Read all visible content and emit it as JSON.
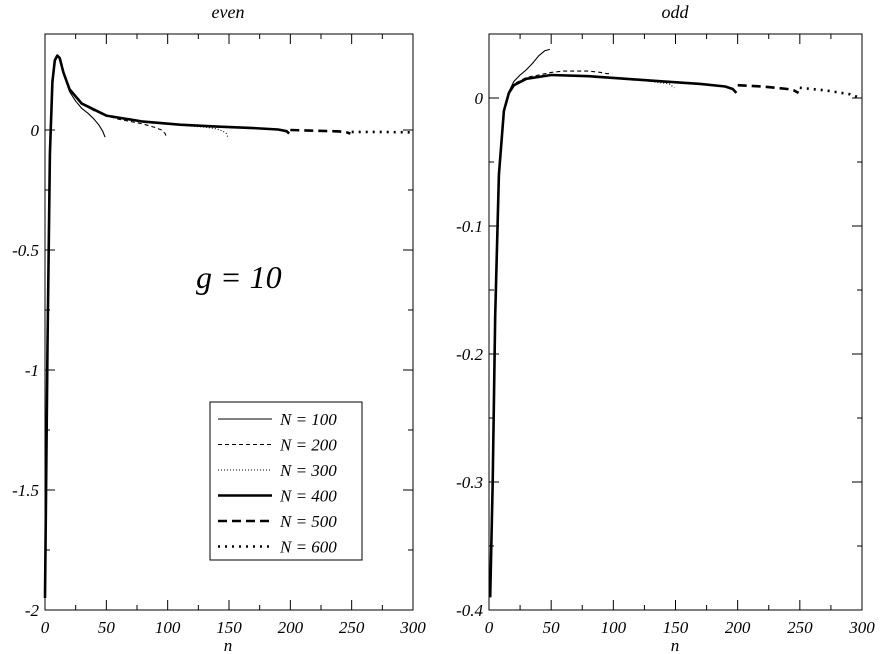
{
  "chart_data": [
    {
      "type": "line",
      "title": "even",
      "xlabel": "n",
      "ylabel": "",
      "xlim": [
        0,
        300
      ],
      "ylim": [
        -2,
        0.4
      ],
      "x_ticks": [
        0,
        50,
        100,
        150,
        200,
        250,
        300
      ],
      "y_ticks": [
        0,
        -0.5,
        -1,
        -1.5,
        -2
      ],
      "y_tick_labels": [
        "0",
        "-0.5",
        "-1",
        "-1.5",
        "-2"
      ],
      "annotation": "g = 10",
      "legend": {
        "placement": "lower-right",
        "entries": [
          "N = 100",
          "N = 200",
          "N = 300",
          "N = 400",
          "N = 500",
          "N = 600"
        ]
      },
      "series": [
        {
          "name": "N = 100",
          "style": "thin-solid",
          "x": [
            0,
            2,
            4,
            6,
            8,
            10,
            12,
            15,
            20,
            25,
            30,
            35,
            40,
            44,
            47,
            49
          ],
          "y": [
            -1.95,
            -0.9,
            -0.1,
            0.2,
            0.29,
            0.31,
            0.3,
            0.24,
            0.16,
            0.12,
            0.09,
            0.07,
            0.045,
            0.02,
            -0.005,
            -0.03
          ]
        },
        {
          "name": "N = 200",
          "style": "thin-dashed",
          "x": [
            0,
            2,
            4,
            6,
            8,
            10,
            12,
            15,
            20,
            30,
            40,
            50,
            60,
            70,
            80,
            90,
            95,
            98,
            99
          ],
          "y": [
            -1.95,
            -0.9,
            -0.1,
            0.2,
            0.29,
            0.31,
            0.3,
            0.24,
            0.17,
            0.11,
            0.08,
            0.06,
            0.045,
            0.035,
            0.025,
            0.01,
            0.0,
            -0.015,
            -0.03
          ]
        },
        {
          "name": "N = 300",
          "style": "thin-dotted",
          "x": [
            0,
            2,
            4,
            6,
            8,
            10,
            12,
            15,
            20,
            30,
            50,
            70,
            90,
            110,
            130,
            140,
            145,
            148,
            149
          ],
          "y": [
            -1.95,
            -0.9,
            -0.1,
            0.2,
            0.29,
            0.31,
            0.3,
            0.24,
            0.17,
            0.11,
            0.06,
            0.04,
            0.028,
            0.02,
            0.012,
            0.005,
            -0.005,
            -0.015,
            -0.03
          ]
        },
        {
          "name": "N = 400",
          "style": "thick-solid",
          "x": [
            0,
            2,
            4,
            6,
            8,
            10,
            12,
            15,
            20,
            30,
            50,
            80,
            110,
            140,
            170,
            190,
            197,
            199
          ],
          "y": [
            -1.95,
            -0.9,
            -0.1,
            0.2,
            0.29,
            0.31,
            0.3,
            0.24,
            0.17,
            0.11,
            0.06,
            0.035,
            0.022,
            0.014,
            0.008,
            0.002,
            -0.005,
            -0.015
          ]
        },
        {
          "name": "N = 500",
          "style": "thick-dashed",
          "x": [
            200,
            220,
            240,
            246,
            249
          ],
          "y": [
            0.0,
            -0.003,
            -0.006,
            -0.01,
            -0.015
          ]
        },
        {
          "name": "N = 600",
          "style": "thick-dotted",
          "x": [
            250,
            270,
            290,
            299
          ],
          "y": [
            -0.008,
            -0.008,
            -0.009,
            -0.01
          ]
        }
      ]
    },
    {
      "type": "line",
      "title": "odd",
      "xlabel": "n",
      "ylabel": "",
      "xlim": [
        0,
        300
      ],
      "ylim": [
        -0.4,
        0.05
      ],
      "x_ticks": [
        0,
        50,
        100,
        150,
        200,
        250,
        300
      ],
      "y_ticks": [
        0,
        -0.1,
        -0.2,
        -0.3,
        -0.4
      ],
      "y_tick_labels": [
        "0",
        "-0.1",
        "-0.2",
        "-0.3",
        "-0.4"
      ],
      "series": [
        {
          "name": "N = 100",
          "style": "thin-solid",
          "x": [
            1,
            3,
            5,
            8,
            12,
            16,
            20,
            25,
            30,
            35,
            40,
            45,
            49
          ],
          "y": [
            -0.39,
            -0.3,
            -0.17,
            -0.06,
            -0.01,
            0.005,
            0.013,
            0.018,
            0.022,
            0.027,
            0.033,
            0.037,
            0.038
          ]
        },
        {
          "name": "N = 200",
          "style": "thin-dashed",
          "x": [
            1,
            3,
            5,
            8,
            12,
            16,
            20,
            30,
            40,
            50,
            60,
            70,
            80,
            90,
            95,
            99
          ],
          "y": [
            -0.39,
            -0.3,
            -0.17,
            -0.06,
            -0.01,
            0.004,
            0.011,
            0.016,
            0.018,
            0.02,
            0.021,
            0.021,
            0.021,
            0.02,
            0.019,
            0.019
          ]
        },
        {
          "name": "N = 300",
          "style": "thin-dotted",
          "x": [
            1,
            3,
            5,
            8,
            12,
            16,
            20,
            30,
            50,
            80,
            110,
            130,
            145,
            149
          ],
          "y": [
            -0.39,
            -0.3,
            -0.17,
            -0.06,
            -0.01,
            0.004,
            0.01,
            0.015,
            0.018,
            0.017,
            0.015,
            0.013,
            0.011,
            0.008
          ]
        },
        {
          "name": "N = 400",
          "style": "thick-solid",
          "x": [
            1,
            3,
            5,
            8,
            12,
            16,
            20,
            30,
            50,
            80,
            110,
            140,
            170,
            190,
            196,
            199
          ],
          "y": [
            -0.39,
            -0.3,
            -0.17,
            -0.06,
            -0.01,
            0.004,
            0.01,
            0.015,
            0.018,
            0.017,
            0.015,
            0.013,
            0.011,
            0.009,
            0.007,
            0.004
          ]
        },
        {
          "name": "N = 500",
          "style": "thick-dashed",
          "x": [
            200,
            220,
            240,
            245,
            249
          ],
          "y": [
            0.01,
            0.009,
            0.007,
            0.006,
            0.004
          ]
        },
        {
          "name": "N = 600",
          "style": "thick-dotted",
          "x": [
            250,
            270,
            290,
            299
          ],
          "y": [
            0.008,
            0.006,
            0.003,
            0.0
          ]
        }
      ]
    }
  ]
}
